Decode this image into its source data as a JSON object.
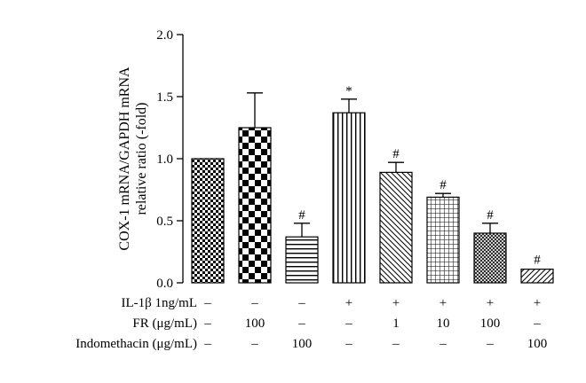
{
  "chart_data": {
    "type": "bar",
    "ylabel_lines": [
      "COX-1 mRNA/GAPDH mRNA",
      "relative ratio (-fold)"
    ],
    "ylim": [
      0,
      2.0
    ],
    "yticks": [
      "0.0",
      "0.5",
      "1.0",
      "1.5",
      "2.0"
    ],
    "grid": false,
    "values": [
      1.0,
      1.25,
      0.37,
      1.37,
      0.89,
      0.69,
      0.4,
      0.11
    ],
    "errors": [
      0,
      0.28,
      0.11,
      0.11,
      0.08,
      0.03,
      0.08,
      0
    ],
    "annotations": [
      "",
      "",
      "#",
      "*",
      "#",
      "#",
      "#",
      "#"
    ],
    "patterns": [
      "checker-small",
      "checker-large",
      "h-lines",
      "v-lines",
      "diag-down",
      "grid",
      "crosshatch-fine",
      "diag-up"
    ],
    "treatment_rows": [
      {
        "label": "IL-1β 1ng/mL",
        "cells": [
          "–",
          "–",
          "–",
          "+",
          "+",
          "+",
          "+",
          "+"
        ]
      },
      {
        "label": "FR (μg/mL)",
        "cells": [
          "–",
          "100",
          "–",
          "–",
          "1",
          "10",
          "100",
          "–"
        ]
      },
      {
        "label": "Indomethacin (μg/mL)",
        "cells": [
          "–",
          "–",
          "100",
          "–",
          "–",
          "–",
          "–",
          "100"
        ]
      }
    ]
  }
}
